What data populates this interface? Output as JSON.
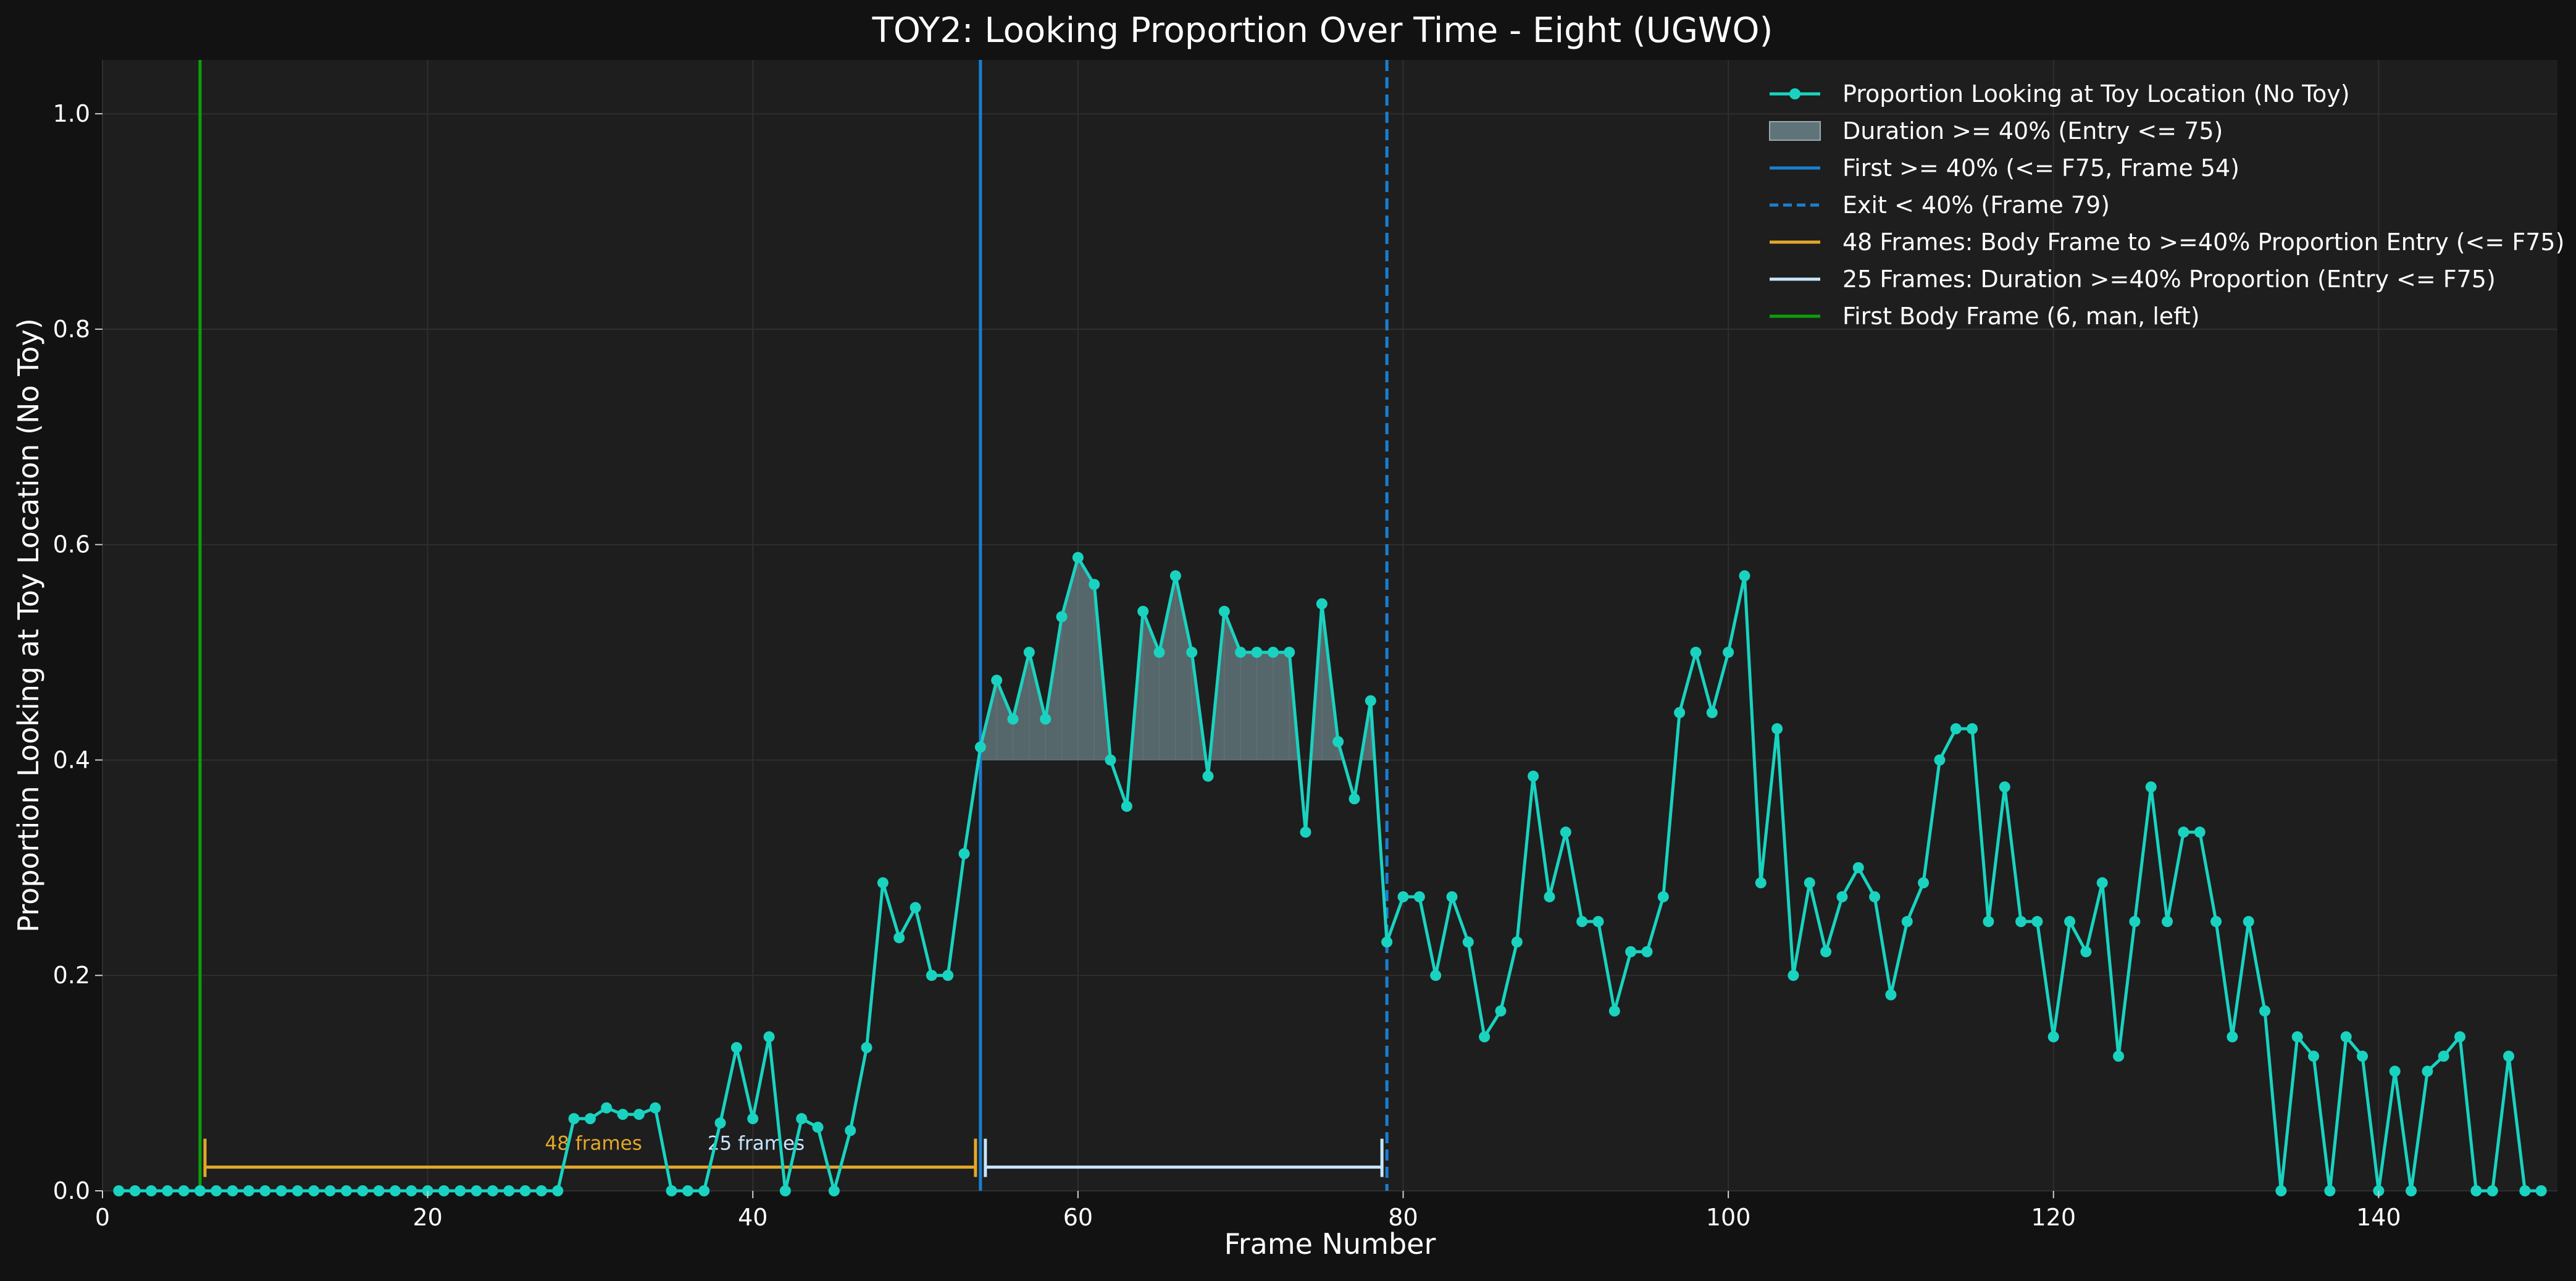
{
  "chart_data": {
    "type": "line",
    "title": "TOY2: Looking Proportion Over Time - Eight (UGWO)",
    "xlabel": "Frame Number",
    "ylabel": "Proportion Looking at Toy Location (No Toy)",
    "xlim": [
      0,
      151
    ],
    "ylim": [
      0,
      1.05
    ],
    "xticks": [
      0,
      20,
      40,
      60,
      80,
      100,
      120,
      140
    ],
    "yticks": [
      0.0,
      0.2,
      0.4,
      0.6,
      0.8,
      1.0
    ],
    "xtick_labels": [
      "0",
      "20",
      "40",
      "60",
      "80",
      "100",
      "120",
      "140"
    ],
    "ytick_labels": [
      "0.0",
      "0.2",
      "0.4",
      "0.6",
      "0.8",
      "1.0"
    ],
    "grid": true,
    "legend_position": "top-right",
    "legend": [
      {
        "key": "series",
        "label": "Proportion Looking at Toy Location (No Toy)",
        "color": "#19d3c0",
        "style": "line-marker"
      },
      {
        "key": "fill",
        "label": "Duration >= 40% (Entry <= 75)",
        "color": "#5f7478",
        "style": "patch"
      },
      {
        "key": "first",
        "label": "First >= 40% (<= F75, Frame 54)",
        "color": "#1a7fd0",
        "style": "solid"
      },
      {
        "key": "exit",
        "label": "Exit < 40% (Frame 79)",
        "color": "#1a7fd0",
        "style": "dashed"
      },
      {
        "key": "body48",
        "label": "48 Frames: Body Frame to >=40% Proportion Entry (<= F75)",
        "color": "#e3a829",
        "style": "solid"
      },
      {
        "key": "dur25",
        "label": "25 Frames: Duration >=40% Proportion (Entry <= F75)",
        "color": "#c8e6ff",
        "style": "solid"
      },
      {
        "key": "body",
        "label": "First Body Frame (6, man, left)",
        "color": "#0aa00a",
        "style": "solid"
      }
    ],
    "series": [
      {
        "name": "Proportion Looking at Toy Location (No Toy)",
        "color": "#19d3c0",
        "x": [
          1,
          2,
          3,
          4,
          5,
          6,
          7,
          8,
          9,
          10,
          11,
          12,
          13,
          14,
          15,
          16,
          17,
          18,
          19,
          20,
          21,
          22,
          23,
          24,
          25,
          26,
          27,
          28,
          29,
          30,
          31,
          32,
          33,
          34,
          35,
          36,
          37,
          38,
          39,
          40,
          41,
          42,
          43,
          44,
          45,
          46,
          47,
          48,
          49,
          50,
          51,
          52,
          53,
          54,
          55,
          56,
          57,
          58,
          59,
          60,
          61,
          62,
          63,
          64,
          65,
          66,
          67,
          68,
          69,
          70,
          71,
          72,
          73,
          74,
          75,
          76,
          77,
          78,
          79,
          80,
          81,
          82,
          83,
          84,
          85,
          86,
          87,
          88,
          89,
          90,
          91,
          92,
          93,
          94,
          95,
          96,
          97,
          98,
          99,
          100,
          101,
          102,
          103,
          104,
          105,
          106,
          107,
          108,
          109,
          110,
          111,
          112,
          113,
          114,
          115,
          116,
          117,
          118,
          119,
          120,
          121,
          122,
          123,
          124,
          125,
          126,
          127,
          128,
          129,
          130,
          131,
          132,
          133,
          134,
          135,
          136,
          137,
          138,
          139,
          140,
          141,
          142,
          143,
          144,
          145,
          146,
          147,
          148,
          149,
          150
        ],
        "values": [
          0,
          0,
          0,
          0,
          0,
          0,
          0,
          0,
          0,
          0,
          0,
          0,
          0,
          0,
          0,
          0,
          0,
          0,
          0,
          0,
          0,
          0,
          0,
          0,
          0,
          0,
          0,
          0,
          0.067,
          0.067,
          0.077,
          0.071,
          0.071,
          0.077,
          0,
          0,
          0,
          0.063,
          0.133,
          0.067,
          0.143,
          0,
          0.067,
          0.059,
          0,
          0.056,
          0.133,
          0.286,
          0.235,
          0.263,
          0.2,
          0.2,
          0.313,
          0.412,
          0.474,
          0.438,
          0.5,
          0.438,
          0.533,
          0.588,
          0.563,
          0.4,
          0.357,
          0.538,
          0.5,
          0.571,
          0.5,
          0.385,
          0.538,
          0.5,
          0.5,
          0.5,
          0.5,
          0.333,
          0.545,
          0.417,
          0.364,
          0.455,
          0.231,
          0.273,
          0.273,
          0.2,
          0.273,
          0.231,
          0.143,
          0.167,
          0.231,
          0.385,
          0.273,
          0.333,
          0.25,
          0.25,
          0.167,
          0.222,
          0.222,
          0.273,
          0.444,
          0.5,
          0.444,
          0.5,
          0.571,
          0.286,
          0.429,
          0.2,
          0.286,
          0.222,
          0.273,
          0.3,
          0.273,
          0.182,
          0.25,
          0.286,
          0.4,
          0.429,
          0.429,
          0.25,
          0.375,
          0.25,
          0.25,
          0.143,
          0.25,
          0.222,
          0.286,
          0.125,
          0.25,
          0.375,
          0.25,
          0.333,
          0.333,
          0.25,
          0.143,
          0.25,
          0.167,
          0,
          0.143,
          0.125,
          0,
          0.143,
          0.125,
          0,
          0.111,
          0,
          0.111,
          0.125,
          0.143,
          0,
          0,
          0.125,
          0,
          0
        ]
      }
    ],
    "threshold": 0.4,
    "fill_range": [
      54,
      79
    ],
    "vlines": {
      "body_frame": 6,
      "first_entry": 54,
      "exit": 79
    },
    "spans": [
      {
        "label": "48 frames",
        "start": 6,
        "end": 54,
        "y": 0.022,
        "color": "#e3a829"
      },
      {
        "label": "25 frames",
        "start": 54,
        "end": 79,
        "y": 0.022,
        "color": "#c8e6ff"
      }
    ]
  }
}
